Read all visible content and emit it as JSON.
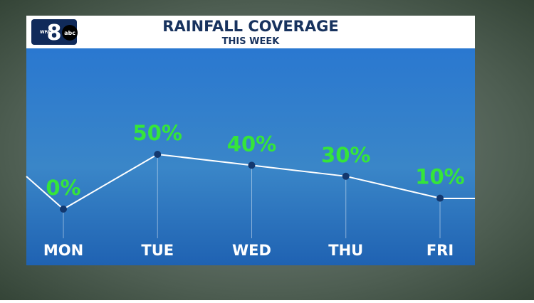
{
  "logo": {
    "station": "WFAA",
    "channel": "8",
    "network": "abc"
  },
  "chart_data": {
    "type": "line",
    "title": "RAINFALL COVERAGE",
    "subtitle": "THIS WEEK",
    "categories": [
      "MON",
      "TUE",
      "WED",
      "THU",
      "FRI"
    ],
    "values": [
      0,
      50,
      40,
      30,
      10
    ],
    "value_labels": [
      "0%",
      "50%",
      "40%",
      "30%",
      "10%"
    ],
    "color": "#ffffff",
    "label_color": "#35e53a",
    "ylim": [
      0,
      50
    ]
  }
}
